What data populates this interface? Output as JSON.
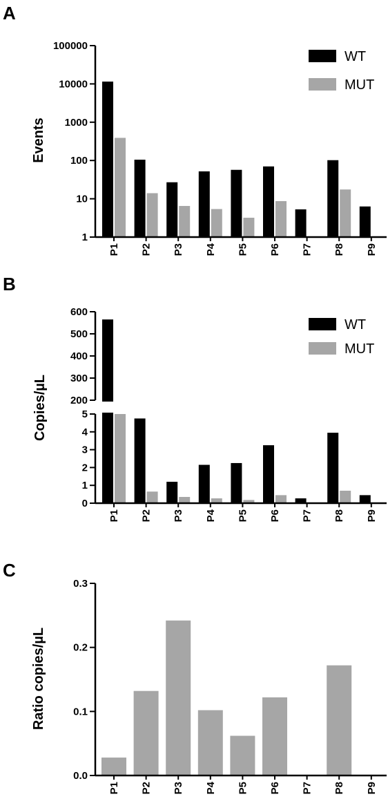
{
  "panels": [
    "A",
    "B",
    "C"
  ],
  "colors": {
    "wt": "#000000",
    "mut": "#a6a6a6",
    "axis": "#000000"
  },
  "chart_data": [
    {
      "id": "A",
      "type": "bar",
      "scale": "log",
      "categories": [
        "P1",
        "P2",
        "P3",
        "P4",
        "P5",
        "P6",
        "P7",
        "P8",
        "P9"
      ],
      "series": [
        {
          "name": "WT",
          "values": [
            11500,
            105,
            27,
            52,
            57,
            70,
            5.3,
            102,
            6.3
          ]
        },
        {
          "name": "MUT",
          "values": [
            390,
            14,
            6.5,
            5.4,
            3.2,
            8.7,
            null,
            17.5,
            null
          ]
        }
      ],
      "ylabel": "Events",
      "ylim": [
        1,
        100000
      ],
      "yticks": [
        "1",
        "10",
        "100",
        "1000",
        "10000",
        "100000"
      ],
      "legend": "top-right"
    },
    {
      "id": "B",
      "type": "bar",
      "scale": "broken-linear",
      "categories": [
        "P1",
        "P2",
        "P3",
        "P4",
        "P5",
        "P6",
        "P7",
        "P8",
        "P9"
      ],
      "series": [
        {
          "name": "WT",
          "values": [
            565,
            4.75,
            1.2,
            2.15,
            2.25,
            3.25,
            0.27,
            3.95,
            0.45
          ]
        },
        {
          "name": "MUT",
          "values": [
            5.1,
            0.65,
            0.35,
            0.27,
            0.18,
            0.45,
            null,
            0.7,
            null
          ]
        }
      ],
      "ylabel": "Copies/µL",
      "ylim_lower": [
        0,
        5
      ],
      "ylim_upper": [
        200,
        600
      ],
      "yticks_lower": [
        "0",
        "1",
        "2",
        "3",
        "4",
        "5"
      ],
      "yticks_upper": [
        "200",
        "300",
        "400",
        "500",
        "600"
      ],
      "legend": "top-right"
    },
    {
      "id": "C",
      "type": "bar",
      "categories": [
        "P1",
        "P2",
        "P3",
        "P4",
        "P5",
        "P6",
        "P7",
        "P8",
        "P9"
      ],
      "series": [
        {
          "values": [
            0.028,
            0.132,
            0.242,
            0.102,
            0.062,
            0.122,
            null,
            0.172,
            null
          ]
        }
      ],
      "ylabel": "Ratio copies/µL",
      "ylim": [
        0,
        0.3
      ],
      "yticks": [
        "0.0",
        "0.1",
        "0.2",
        "0.3"
      ]
    }
  ]
}
